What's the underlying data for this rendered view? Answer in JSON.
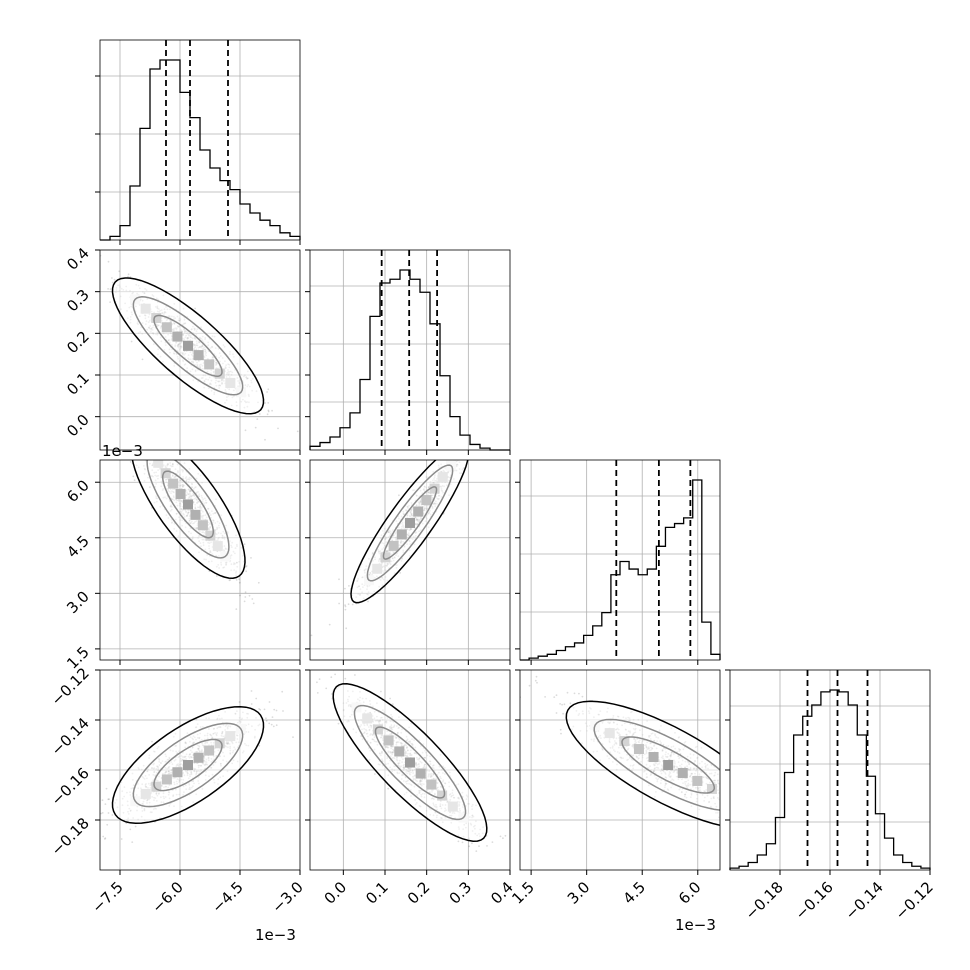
{
  "chart_data": {
    "type": "corner",
    "description_of_layout": "4x4 lower-triangular corner plot; diagonal = 1D histograms with dashed quantile lines; off-diagonal = 2D scatter + density contours",
    "grid": true,
    "parameters": [
      {
        "id": "p0",
        "range": [
          -8.0,
          -3.0
        ],
        "ticks": [
          -7.5,
          -6.0,
          -4.5,
          -3.0
        ],
        "tick_labels": [
          "−7.5",
          "−6.0",
          "−4.5",
          "−3.0"
        ],
        "scale_label": "1e−3",
        "quantiles": [
          -6.35,
          -5.75,
          -4.8
        ]
      },
      {
        "id": "p1",
        "range": [
          -0.08,
          0.4
        ],
        "ticks": [
          0.0,
          0.1,
          0.2,
          0.3,
          0.4
        ],
        "tick_labels": [
          "0.0",
          "0.1",
          "0.2",
          "0.3",
          "0.4"
        ],
        "scale_label": "",
        "quantiles": [
          0.092,
          0.158,
          0.225
        ]
      },
      {
        "id": "p2",
        "range": [
          1.2,
          6.6
        ],
        "ticks": [
          1.5,
          3.0,
          4.5,
          6.0
        ],
        "tick_labels": [
          "1.5",
          "3.0",
          "4.5",
          "6.0"
        ],
        "scale_label": "1e−3",
        "quantiles": [
          3.8,
          4.95,
          5.8
        ]
      },
      {
        "id": "p3",
        "range": [
          -0.2,
          -0.12
        ],
        "ticks": [
          -0.18,
          -0.16,
          -0.14,
          -0.12
        ],
        "tick_labels": [
          "−0.18",
          "−0.16",
          "−0.14",
          "−0.12"
        ],
        "scale_label": "",
        "quantiles": [
          -0.169,
          -0.157,
          -0.145
        ]
      }
    ],
    "histograms": [
      {
        "param": "p0",
        "counts": [
          0,
          2,
          8,
          30,
          62,
          95,
          100,
          100,
          82,
          68,
          50,
          40,
          33,
          28,
          20,
          15,
          11,
          8,
          4,
          2
        ]
      },
      {
        "param": "p1",
        "counts": [
          2,
          4,
          7,
          12,
          20,
          38,
          72,
          90,
          92,
          97,
          92,
          85,
          68,
          40,
          18,
          8,
          3,
          1,
          0,
          0
        ]
      },
      {
        "param": "p2",
        "counts": [
          0,
          1,
          2,
          3,
          5,
          7,
          9,
          13,
          18,
          25,
          45,
          52,
          48,
          45,
          48,
          60,
          70,
          72,
          75,
          95,
          20,
          3
        ]
      },
      {
        "param": "p3",
        "counts": [
          1,
          2,
          4,
          8,
          14,
          28,
          52,
          72,
          82,
          88,
          95,
          96,
          95,
          88,
          72,
          50,
          30,
          17,
          8,
          4,
          2,
          1
        ]
      }
    ],
    "correlations": [
      {
        "pair": [
          "p0",
          "p1"
        ],
        "relation": "negative",
        "center": [
          -5.8,
          0.17
        ]
      },
      {
        "pair": [
          "p0",
          "p2"
        ],
        "relation": "negative",
        "center": [
          -5.8,
          5.4
        ]
      },
      {
        "pair": [
          "p1",
          "p2"
        ],
        "relation": "positive",
        "center": [
          0.16,
          4.9
        ]
      },
      {
        "pair": [
          "p0",
          "p3"
        ],
        "relation": "positive",
        "center": [
          -5.8,
          -0.158
        ]
      },
      {
        "pair": [
          "p1",
          "p3"
        ],
        "relation": "negative",
        "center": [
          0.16,
          -0.157
        ]
      },
      {
        "pair": [
          "p2",
          "p3"
        ],
        "relation": "negative",
        "center": [
          5.2,
          -0.158
        ]
      }
    ]
  }
}
